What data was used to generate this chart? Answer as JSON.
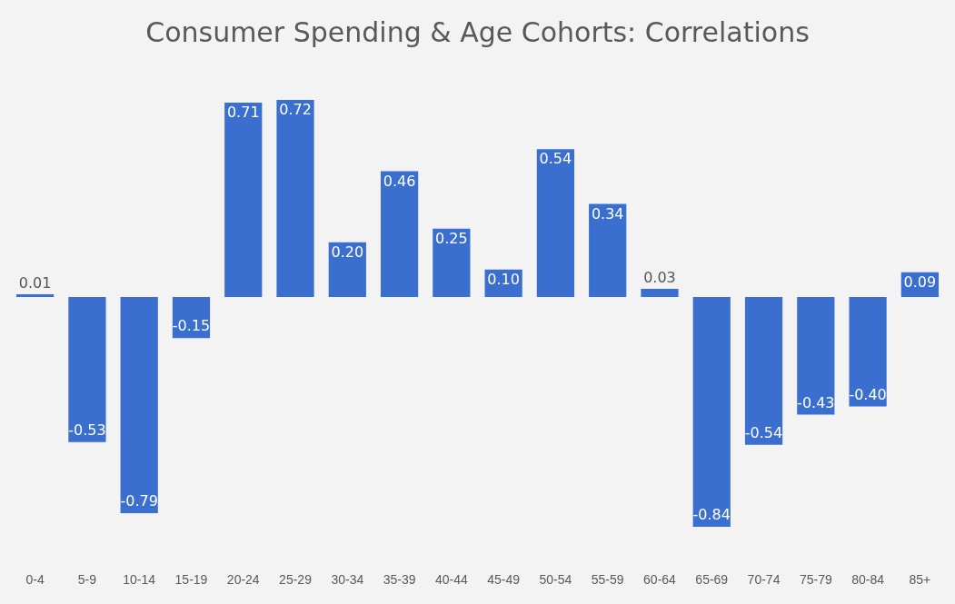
{
  "chart_data": {
    "type": "bar",
    "title": "Consumer Spending & Age Cohorts: Correlations",
    "categories": [
      "0-4",
      "5-9",
      "10-14",
      "15-19",
      "20-24",
      "25-29",
      "30-34",
      "35-39",
      "40-44",
      "45-49",
      "50-54",
      "55-59",
      "60-64",
      "65-69",
      "70-74",
      "75-79",
      "80-84",
      "85+"
    ],
    "values": [
      0.01,
      -0.53,
      -0.79,
      -0.15,
      0.71,
      0.72,
      0.2,
      0.46,
      0.25,
      0.1,
      0.54,
      0.34,
      0.03,
      -0.84,
      -0.54,
      -0.43,
      -0.4,
      0.09
    ],
    "value_labels": [
      "0.01",
      "-0.53",
      "-0.79",
      "-0.15",
      "0.71",
      "0.72",
      "0.20",
      "0.46",
      "0.25",
      "0.10",
      "0.54",
      "0.34",
      "0.03",
      "-0.84",
      "-0.54",
      "-0.43",
      "-0.40",
      "0.09"
    ],
    "color": "#3a6fd0",
    "grid": false,
    "legend": false
  }
}
